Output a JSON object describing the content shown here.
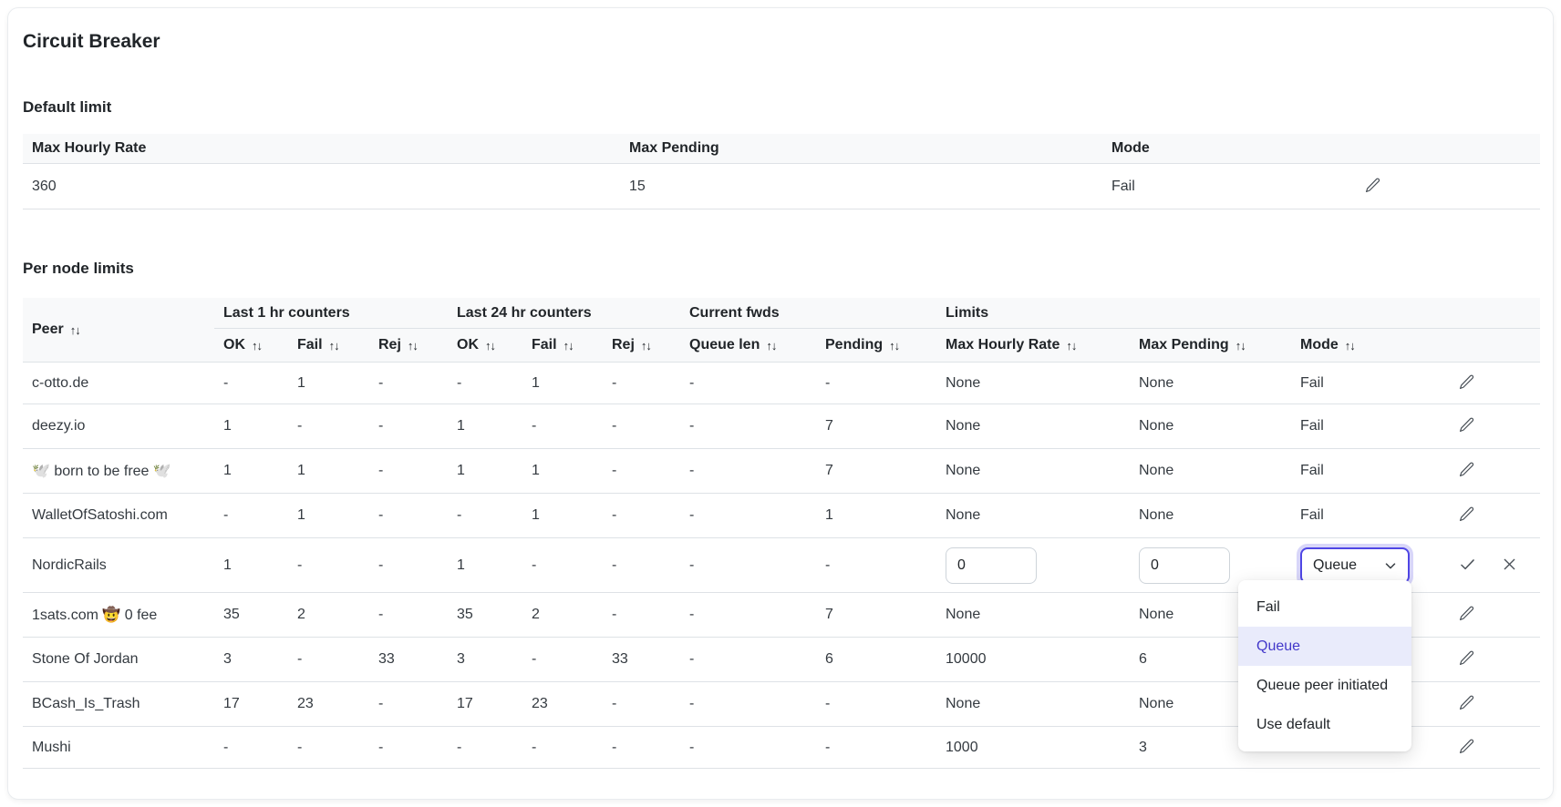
{
  "title": "Circuit Breaker",
  "icons": {
    "sort": "↑↓",
    "edit": "pencil-icon",
    "confirm": "check-icon",
    "cancel": "x-icon",
    "select_chevron": "chevron-down-icon"
  },
  "colors": {
    "accent": "#4f46e5",
    "menu_active_bg": "#e9ebfb",
    "menu_active_text": "#4338ca"
  },
  "default_limit": {
    "heading": "Default limit",
    "columns": {
      "max_hourly_rate": "Max Hourly Rate",
      "max_pending": "Max Pending",
      "mode": "Mode"
    },
    "row": {
      "max_hourly_rate": "360",
      "max_pending": "15",
      "mode": "Fail"
    }
  },
  "per_node": {
    "heading": "Per node limits",
    "groups": {
      "last_1hr": "Last 1 hr counters",
      "last_24hr": "Last 24 hr counters",
      "current_fwds": "Current fwds",
      "limits": "Limits"
    },
    "columns": {
      "peer": "Peer",
      "ok": "OK",
      "fail": "Fail",
      "rej": "Rej",
      "queue_len": "Queue len",
      "pending": "Pending",
      "max_hourly_rate": "Max Hourly Rate",
      "max_pending": "Max Pending",
      "mode": "Mode"
    },
    "rows": [
      {
        "peer": "c-otto.de",
        "cells": [
          "-",
          "1",
          "-",
          "-",
          "1",
          "-",
          "-",
          "-"
        ],
        "max_hourly_rate": "None",
        "max_pending": "None",
        "mode": "Fail",
        "editing": false
      },
      {
        "peer": "deezy.io",
        "cells": [
          "1",
          "-",
          "-",
          "1",
          "-",
          "-",
          "-",
          "7"
        ],
        "max_hourly_rate": "None",
        "max_pending": "None",
        "mode": "Fail",
        "editing": false
      },
      {
        "peer": "🕊️ born to be free 🕊️",
        "cells": [
          "1",
          "1",
          "-",
          "1",
          "1",
          "-",
          "-",
          "7"
        ],
        "max_hourly_rate": "None",
        "max_pending": "None",
        "mode": "Fail",
        "editing": false
      },
      {
        "peer": "WalletOfSatoshi.com",
        "cells": [
          "-",
          "1",
          "-",
          "-",
          "1",
          "-",
          "-",
          "1"
        ],
        "max_hourly_rate": "None",
        "max_pending": "None",
        "mode": "Fail",
        "editing": false
      },
      {
        "peer": "NordicRails",
        "cells": [
          "1",
          "-",
          "-",
          "1",
          "-",
          "-",
          "-",
          "-"
        ],
        "editing": true,
        "max_hourly_rate_input": "0",
        "max_pending_input": "0",
        "mode_select": "Queue"
      },
      {
        "peer": "1sats.com 🤠 0 fee",
        "cells": [
          "35",
          "2",
          "-",
          "35",
          "2",
          "-",
          "-",
          "7"
        ],
        "max_hourly_rate": "None",
        "max_pending": "None",
        "mode": "",
        "editing": false
      },
      {
        "peer": "Stone Of Jordan",
        "cells": [
          "3",
          "-",
          "33",
          "3",
          "-",
          "33",
          "-",
          "6"
        ],
        "max_hourly_rate": "10000",
        "max_pending": "6",
        "mode": "",
        "editing": false
      },
      {
        "peer": "BCash_Is_Trash",
        "cells": [
          "17",
          "23",
          "-",
          "17",
          "23",
          "-",
          "-",
          "-"
        ],
        "max_hourly_rate": "None",
        "max_pending": "None",
        "mode": "",
        "editing": false
      },
      {
        "peer": "Mushi",
        "cells": [
          "-",
          "-",
          "-",
          "-",
          "-",
          "-",
          "-",
          "-"
        ],
        "max_hourly_rate": "1000",
        "max_pending": "3",
        "mode": "",
        "editing": false
      }
    ],
    "mode_menu": {
      "options": [
        "Fail",
        "Queue",
        "Queue peer initiated",
        "Use default"
      ],
      "selected": "Queue"
    }
  }
}
